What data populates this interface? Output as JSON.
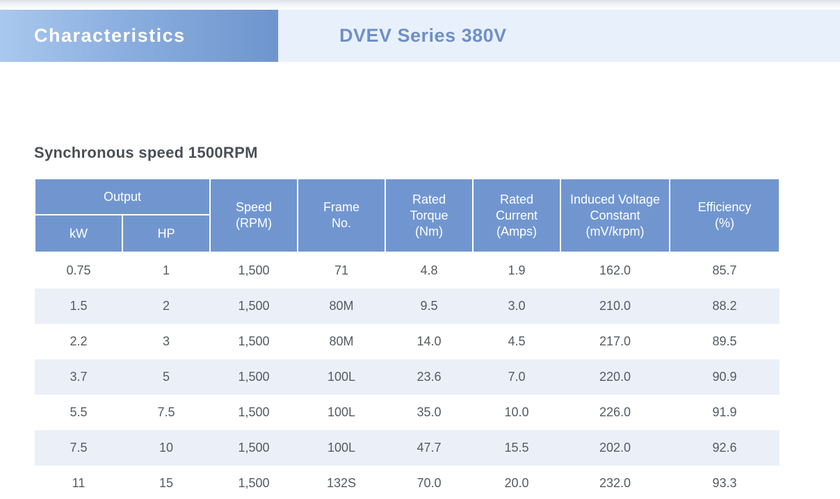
{
  "header": {
    "tab_label": "Characteristics",
    "title": "DVEV Series 380V"
  },
  "section_title": "Synchronous speed 1500RPM",
  "table": {
    "group_header": "Output",
    "headers": {
      "kw": "kW",
      "hp": "HP",
      "speed": [
        "Speed",
        "(RPM)"
      ],
      "frame": [
        "Frame",
        "No."
      ],
      "torque": [
        "Rated",
        "Torque",
        "(Nm)"
      ],
      "current": [
        "Rated",
        "Current",
        "(Amps)"
      ],
      "voltage": [
        "Induced Voltage",
        "Constant",
        "(mV/krpm)"
      ],
      "efficiency": [
        "Efficiency",
        "(%)"
      ]
    },
    "rows": [
      [
        "0.75",
        "1",
        "1,500",
        "71",
        "4.8",
        "1.9",
        "162.0",
        "85.7"
      ],
      [
        "1.5",
        "2",
        "1,500",
        "80M",
        "9.5",
        "3.0",
        "210.0",
        "88.2"
      ],
      [
        "2.2",
        "3",
        "1,500",
        "80M",
        "14.0",
        "4.5",
        "217.0",
        "89.5"
      ],
      [
        "3.7",
        "5",
        "1,500",
        "100L",
        "23.6",
        "7.0",
        "220.0",
        "90.9"
      ],
      [
        "5.5",
        "7.5",
        "1,500",
        "100L",
        "35.0",
        "10.0",
        "226.0",
        "91.9"
      ],
      [
        "7.5",
        "10",
        "1,500",
        "100L",
        "47.7",
        "15.5",
        "202.0",
        "92.6"
      ],
      [
        "11",
        "15",
        "1,500",
        "132S",
        "70.0",
        "20.0",
        "232.0",
        "93.3"
      ]
    ]
  },
  "colors": {
    "header_accent": "#7196cf",
    "row_stripe": "#ebf0f8",
    "title_blue": "#6f8fc7"
  }
}
